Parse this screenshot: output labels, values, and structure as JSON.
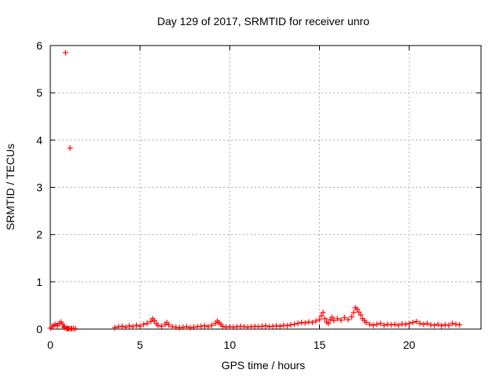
{
  "chart_data": {
    "type": "scatter",
    "title": "Day 129 of 2017, SRMTID for receiver unro",
    "xlabel": "GPS time / hours",
    "ylabel": "SRMTID / TECUs",
    "xlim": [
      0,
      24
    ],
    "ylim": [
      0,
      6
    ],
    "xticks": [
      0,
      5,
      10,
      15,
      20
    ],
    "yticks": [
      0,
      1,
      2,
      3,
      4,
      5,
      6
    ],
    "xtick_labels": [
      "0",
      "5",
      "10",
      "15",
      "20"
    ],
    "ytick_labels": [
      "0",
      "1",
      "2",
      "3",
      "4",
      "5",
      "6"
    ],
    "grid": true,
    "marker": "+",
    "series_color": "#ff0000",
    "series": [
      {
        "name": "SRMTID",
        "points": [
          [
            0.0,
            0.02
          ],
          [
            0.1,
            0.05
          ],
          [
            0.2,
            0.08
          ],
          [
            0.3,
            0.1
          ],
          [
            0.4,
            0.07
          ],
          [
            0.5,
            0.12
          ],
          [
            0.6,
            0.15
          ],
          [
            0.7,
            0.1
          ],
          [
            0.75,
            0.05
          ],
          [
            0.8,
            0.03
          ],
          [
            0.85,
            5.85
          ],
          [
            0.9,
            0.02
          ],
          [
            0.95,
            0.01
          ],
          [
            1.0,
            0.01
          ],
          [
            1.05,
            0.01
          ],
          [
            1.1,
            3.83
          ],
          [
            1.15,
            0.01
          ],
          [
            1.2,
            0.01
          ],
          [
            1.3,
            0.01
          ],
          [
            1.4,
            0.01
          ],
          [
            3.6,
            0.03
          ],
          [
            3.8,
            0.05
          ],
          [
            4.0,
            0.06
          ],
          [
            4.2,
            0.04
          ],
          [
            4.4,
            0.07
          ],
          [
            4.6,
            0.05
          ],
          [
            4.8,
            0.08
          ],
          [
            5.0,
            0.06
          ],
          [
            5.2,
            0.1
          ],
          [
            5.4,
            0.12
          ],
          [
            5.6,
            0.16
          ],
          [
            5.7,
            0.22
          ],
          [
            5.8,
            0.18
          ],
          [
            5.9,
            0.12
          ],
          [
            6.0,
            0.08
          ],
          [
            6.2,
            0.06
          ],
          [
            6.4,
            0.1
          ],
          [
            6.5,
            0.14
          ],
          [
            6.6,
            0.09
          ],
          [
            6.8,
            0.05
          ],
          [
            7.0,
            0.04
          ],
          [
            7.2,
            0.03
          ],
          [
            7.4,
            0.04
          ],
          [
            7.6,
            0.05
          ],
          [
            7.8,
            0.03
          ],
          [
            8.0,
            0.04
          ],
          [
            8.2,
            0.05
          ],
          [
            8.4,
            0.06
          ],
          [
            8.6,
            0.07
          ],
          [
            8.8,
            0.05
          ],
          [
            9.0,
            0.08
          ],
          [
            9.2,
            0.12
          ],
          [
            9.3,
            0.17
          ],
          [
            9.4,
            0.14
          ],
          [
            9.5,
            0.1
          ],
          [
            9.6,
            0.06
          ],
          [
            9.8,
            0.04
          ],
          [
            10.0,
            0.05
          ],
          [
            10.2,
            0.04
          ],
          [
            10.4,
            0.05
          ],
          [
            10.6,
            0.06
          ],
          [
            10.8,
            0.05
          ],
          [
            11.0,
            0.04
          ],
          [
            11.2,
            0.05
          ],
          [
            11.4,
            0.06
          ],
          [
            11.6,
            0.05
          ],
          [
            11.8,
            0.06
          ],
          [
            12.0,
            0.07
          ],
          [
            12.2,
            0.05
          ],
          [
            12.4,
            0.06
          ],
          [
            12.6,
            0.07
          ],
          [
            12.8,
            0.06
          ],
          [
            13.0,
            0.08
          ],
          [
            13.2,
            0.07
          ],
          [
            13.4,
            0.09
          ],
          [
            13.6,
            0.1
          ],
          [
            13.8,
            0.12
          ],
          [
            14.0,
            0.14
          ],
          [
            14.2,
            0.13
          ],
          [
            14.4,
            0.15
          ],
          [
            14.6,
            0.14
          ],
          [
            14.8,
            0.17
          ],
          [
            15.0,
            0.2
          ],
          [
            15.1,
            0.28
          ],
          [
            15.2,
            0.35
          ],
          [
            15.3,
            0.22
          ],
          [
            15.4,
            0.15
          ],
          [
            15.5,
            0.12
          ],
          [
            15.6,
            0.2
          ],
          [
            15.7,
            0.25
          ],
          [
            15.8,
            0.18
          ],
          [
            16.0,
            0.22
          ],
          [
            16.2,
            0.19
          ],
          [
            16.4,
            0.24
          ],
          [
            16.6,
            0.2
          ],
          [
            16.8,
            0.26
          ],
          [
            16.9,
            0.35
          ],
          [
            17.0,
            0.45
          ],
          [
            17.1,
            0.42
          ],
          [
            17.2,
            0.36
          ],
          [
            17.3,
            0.3
          ],
          [
            17.4,
            0.22
          ],
          [
            17.5,
            0.18
          ],
          [
            17.6,
            0.14
          ],
          [
            17.8,
            0.1
          ],
          [
            18.0,
            0.08
          ],
          [
            18.2,
            0.1
          ],
          [
            18.4,
            0.12
          ],
          [
            18.6,
            0.08
          ],
          [
            18.8,
            0.1
          ],
          [
            19.0,
            0.09
          ],
          [
            19.2,
            0.1
          ],
          [
            19.4,
            0.08
          ],
          [
            19.6,
            0.11
          ],
          [
            19.8,
            0.1
          ],
          [
            20.0,
            0.12
          ],
          [
            20.2,
            0.14
          ],
          [
            20.4,
            0.16
          ],
          [
            20.6,
            0.12
          ],
          [
            20.8,
            0.1
          ],
          [
            21.0,
            0.12
          ],
          [
            21.2,
            0.09
          ],
          [
            21.4,
            0.08
          ],
          [
            21.6,
            0.1
          ],
          [
            21.8,
            0.07
          ],
          [
            22.0,
            0.09
          ],
          [
            22.2,
            0.08
          ],
          [
            22.4,
            0.12
          ],
          [
            22.6,
            0.1
          ],
          [
            22.8,
            0.09
          ]
        ]
      }
    ]
  }
}
